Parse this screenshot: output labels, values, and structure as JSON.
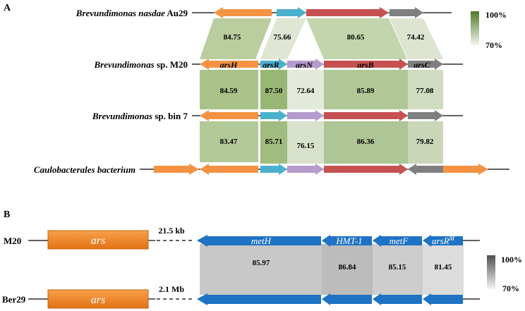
{
  "panel_a": {
    "label": "A",
    "rows": [
      {
        "genus": "Brevundimonas",
        "rest": " nasdae",
        "suffix": " Au29"
      },
      {
        "genus": "Brevundimonas",
        "rest": "",
        "suffix": " sp. M20"
      },
      {
        "genus": "Brevundimonas",
        "rest": "",
        "suffix": " sp. bin 7"
      },
      {
        "genus": "Caulobacterales bacterium",
        "rest": "",
        "suffix": ""
      }
    ],
    "genes": [
      "arsH",
      "arsR",
      "arsN",
      "arsB",
      "arsC"
    ],
    "identity_row1": [
      "84.75",
      "75.66",
      "80.65",
      "74.42"
    ],
    "identity_row2": [
      "84.59",
      "87.50",
      "72.64",
      "85.89",
      "77.08"
    ],
    "identity_row3": [
      "83.47",
      "85.71",
      "76.15",
      "86.36",
      "79.82"
    ],
    "legend": {
      "max": "100%",
      "min": "70%"
    }
  },
  "panel_b": {
    "label": "B",
    "rows": [
      {
        "name": "M20",
        "ars": "ars",
        "gap": "21.5 kb"
      },
      {
        "name": "Ber29",
        "ars": "ars",
        "gap": "2.1 Mb"
      }
    ],
    "genes": [
      "metH",
      "HMT-1",
      "metF",
      "arsR"
    ],
    "gene4_sup": "M",
    "identity": [
      "85.97",
      "86.84",
      "85.15",
      "81.45"
    ],
    "legend": {
      "max": "100%",
      "min": "70%"
    }
  },
  "colors": {
    "arsH": "#f49343",
    "arsR": "#4bb0cc",
    "arsN": "#b49bcc",
    "arsB": "#c65151",
    "arsC": "#7f7f7f",
    "ars_box": "#ee7e22",
    "blue": "#1e73c4",
    "green_dark": "#4f7a2a"
  }
}
